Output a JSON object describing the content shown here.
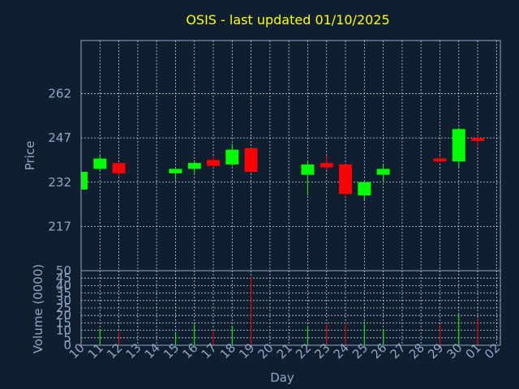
{
  "colors": {
    "background": "#0f1f30",
    "title": "#ffff00",
    "axis_text": "#8fa8c8",
    "axis_line": "#8fa8c8",
    "grid": "#c8d2dc",
    "up": "#00ff00",
    "down": "#ff0000"
  },
  "chart_data": {
    "type": "candlestick",
    "title": "OSIS - last updated 01/10/2025",
    "xlabel": "Day",
    "price_panel": {
      "ylabel": "Price",
      "ylim": [
        202,
        280
      ],
      "yticks": [
        217,
        232,
        247,
        262
      ],
      "grid": true
    },
    "volume_panel": {
      "ylabel": "Volume (0000)",
      "ylim": [
        0,
        50
      ],
      "yticks": [
        0,
        5,
        10,
        15,
        20,
        25,
        30,
        35,
        40,
        45,
        50
      ],
      "grid": true
    },
    "x_ticks": [
      "10",
      "11",
      "12",
      "13",
      "14",
      "15",
      "16",
      "17",
      "18",
      "19",
      "20",
      "21",
      "22",
      "23",
      "24",
      "25",
      "26",
      "27",
      "28",
      "29",
      "30",
      "01",
      "02"
    ],
    "candles": [
      {
        "x": "10",
        "open": 229.5,
        "high": 236,
        "low": 229,
        "close": 235.5,
        "volume": 12
      },
      {
        "x": "11",
        "open": 236.5,
        "high": 241,
        "low": 236,
        "close": 240,
        "volume": 11
      },
      {
        "x": "12",
        "open": 238.5,
        "high": 238.5,
        "low": 234,
        "close": 235,
        "volume": 9
      },
      {
        "x": "15",
        "open": 235,
        "high": 236.5,
        "low": 233,
        "close": 236.5,
        "volume": 9
      },
      {
        "x": "16",
        "open": 236.5,
        "high": 239,
        "low": 235,
        "close": 238.5,
        "volume": 14
      },
      {
        "x": "17",
        "open": 239.5,
        "high": 241,
        "low": 237,
        "close": 237.5,
        "volume": 10
      },
      {
        "x": "18",
        "open": 238,
        "high": 245,
        "low": 237.5,
        "close": 243,
        "volume": 13
      },
      {
        "x": "19",
        "open": 243.5,
        "high": 243.5,
        "low": 235,
        "close": 235.5,
        "volume": 46
      },
      {
        "x": "22",
        "open": 234.5,
        "high": 239,
        "low": 227.5,
        "close": 238,
        "volume": 13
      },
      {
        "x": "23",
        "open": 238.5,
        "high": 241,
        "low": 236,
        "close": 237,
        "volume": 15
      },
      {
        "x": "24",
        "open": 238,
        "high": 238,
        "low": 227,
        "close": 228,
        "volume": 15
      },
      {
        "x": "25",
        "open": 227.5,
        "high": 232,
        "low": 226,
        "close": 232,
        "volume": 16
      },
      {
        "x": "26",
        "open": 234.5,
        "high": 238,
        "low": 232,
        "close": 236.5,
        "volume": 11
      },
      {
        "x": "29",
        "open": 240,
        "high": 241,
        "low": 238.5,
        "close": 239,
        "volume": 14
      },
      {
        "x": "30",
        "open": 239,
        "high": 250.5,
        "low": 237,
        "close": 250,
        "volume": 21
      },
      {
        "x": "01",
        "open": 247,
        "high": 248,
        "low": 244,
        "close": 246,
        "volume": 18
      }
    ]
  }
}
